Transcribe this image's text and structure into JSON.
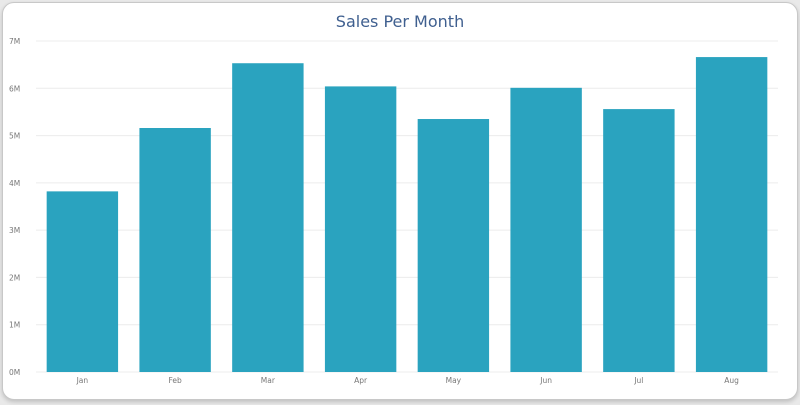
{
  "chart_data": {
    "type": "bar",
    "title": "Sales Per Month",
    "xlabel": "",
    "ylabel": "",
    "categories": [
      "Jan",
      "Feb",
      "Mar",
      "Apr",
      "May",
      "Jun",
      "Jul",
      "Aug"
    ],
    "values": [
      3820000,
      5160000,
      6530000,
      6040000,
      5350000,
      6010000,
      5560000,
      6660000
    ],
    "ylim": [
      0,
      7000000
    ],
    "yticks": [
      "0M",
      "1M",
      "2M",
      "3M",
      "4M",
      "5M",
      "6M",
      "7M"
    ],
    "grid": true,
    "legend": "none",
    "colors": {
      "bar": "#2aa3bf",
      "grid": "#ececec",
      "title": "#3f5f8f",
      "tick": "#777777"
    }
  }
}
